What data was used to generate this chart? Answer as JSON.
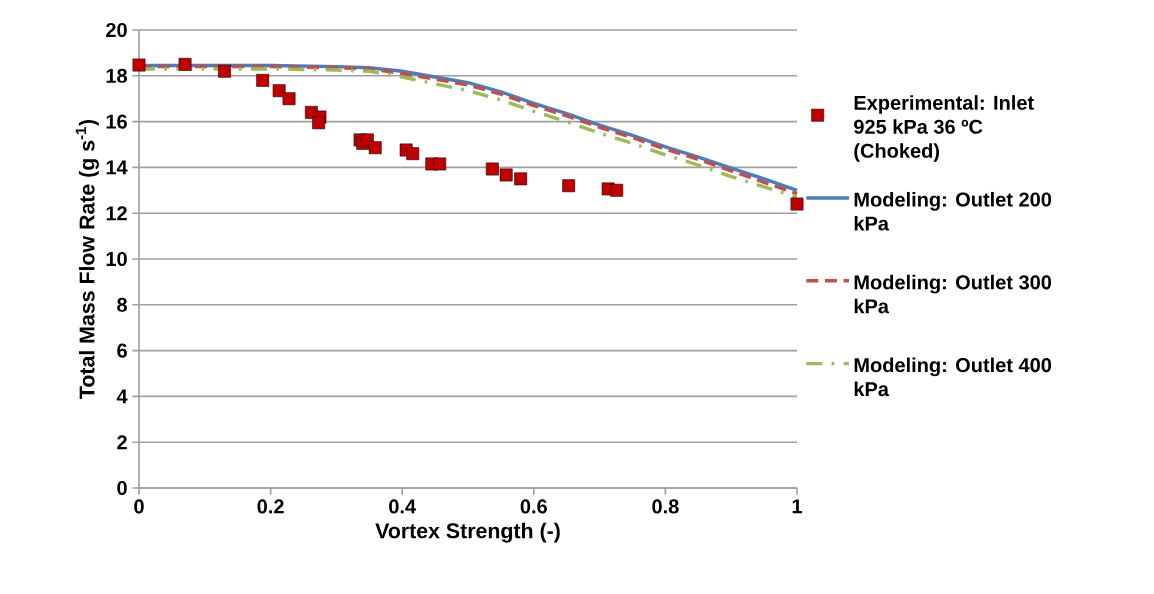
{
  "chart_data": {
    "type": "line",
    "xlabel": "Vortex Strength (-)",
    "ylabel": "Total Mass Flow Rate (g s$^{-1}$)",
    "xlim": [
      0,
      1
    ],
    "xticks": [
      0,
      0.2,
      0.4,
      0.6,
      0.8,
      1
    ],
    "ylim": [
      0,
      20
    ],
    "yticks": [
      0,
      2,
      4,
      6,
      8,
      10,
      12,
      14,
      16,
      18,
      20
    ],
    "grid": "y",
    "legend": "right",
    "series": [
      {
        "name": "Experimental: Inlet 925 kPa 36 ºC (Choked)",
        "type": "scatter",
        "marker": "square",
        "color": "#c00000",
        "x": [
          0.0,
          0.07,
          0.13,
          0.188,
          0.213,
          0.228,
          0.262,
          0.275,
          0.273,
          0.336,
          0.34,
          0.347,
          0.359,
          0.406,
          0.416,
          0.445,
          0.457,
          0.537,
          0.558,
          0.58,
          0.653,
          0.713,
          0.726,
          1.0
        ],
        "values": [
          18.47,
          18.5,
          18.2,
          17.8,
          17.35,
          17.0,
          16.4,
          16.2,
          15.95,
          15.2,
          15.05,
          15.2,
          14.86,
          14.76,
          14.6,
          14.15,
          14.15,
          13.93,
          13.67,
          13.5,
          13.2,
          13.06,
          13.0,
          12.4
        ]
      },
      {
        "name": "Modeling: Outlet 200 kPa",
        "line_style": "solid",
        "color": "#4a7ebb",
        "x": [
          0,
          0.1,
          0.2,
          0.3,
          0.35,
          0.4,
          0.45,
          0.5,
          0.55,
          0.6,
          0.65,
          0.7,
          0.75,
          0.8,
          0.85,
          0.9,
          0.95,
          1.0
        ],
        "values": [
          18.45,
          18.45,
          18.45,
          18.4,
          18.35,
          18.2,
          17.95,
          17.7,
          17.3,
          16.8,
          16.35,
          15.85,
          15.4,
          14.9,
          14.45,
          13.97,
          13.5,
          13.0
        ]
      },
      {
        "name": "Modeling: Outlet 300 kPa",
        "line_style": "dashed",
        "color": "#c0504d",
        "x": [
          0,
          0.1,
          0.2,
          0.3,
          0.35,
          0.4,
          0.45,
          0.5,
          0.55,
          0.6,
          0.65,
          0.7,
          0.75,
          0.8,
          0.85,
          0.9,
          0.95,
          1.0
        ],
        "values": [
          18.4,
          18.4,
          18.4,
          18.35,
          18.3,
          18.1,
          17.85,
          17.6,
          17.2,
          16.7,
          16.25,
          15.75,
          15.3,
          14.8,
          14.35,
          13.85,
          13.35,
          12.85
        ]
      },
      {
        "name": "Modeling: Outlet 400 kPa",
        "line_style": "dashdot",
        "color": "#9bbb59",
        "x": [
          0,
          0.1,
          0.2,
          0.3,
          0.35,
          0.4,
          0.45,
          0.5,
          0.55,
          0.6,
          0.65,
          0.7,
          0.75,
          0.8,
          0.85,
          0.9,
          0.95,
          1.0
        ],
        "values": [
          18.3,
          18.3,
          18.3,
          18.25,
          18.2,
          17.95,
          17.65,
          17.35,
          16.95,
          16.45,
          16.0,
          15.5,
          15.05,
          14.55,
          14.1,
          13.6,
          13.15,
          12.7
        ]
      }
    ]
  }
}
